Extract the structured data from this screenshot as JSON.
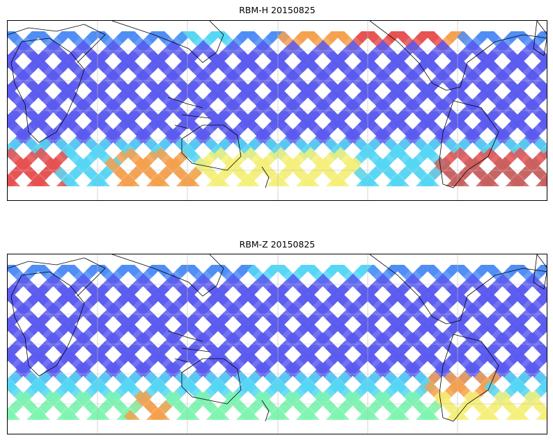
{
  "panels": [
    {
      "title": "RBM-H 20150825"
    },
    {
      "title": "RBM-Z 20150825"
    }
  ],
  "colors": {
    "low": "#5a5af0",
    "low_mid": "#4d8cf5",
    "mid": "#55d6f5",
    "mid_high": "#7ff5b0",
    "high": "#f5f07a",
    "higher": "#f5a04d",
    "max": "#e65050",
    "max_dark": "#c86060",
    "coast": "#000000",
    "grid": "#bbbbbb"
  }
}
